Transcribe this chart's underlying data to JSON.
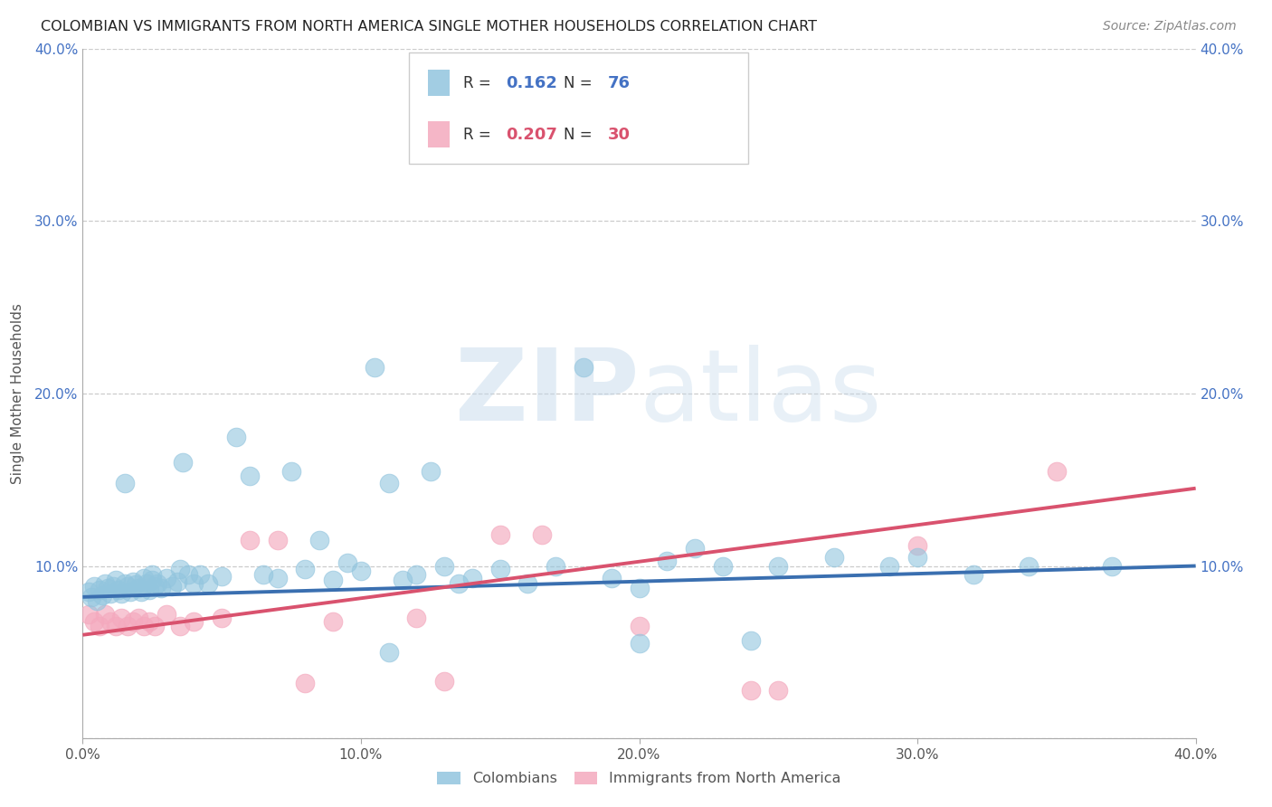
{
  "title": "COLOMBIAN VS IMMIGRANTS FROM NORTH AMERICA SINGLE MOTHER HOUSEHOLDS CORRELATION CHART",
  "source": "Source: ZipAtlas.com",
  "ylabel": "Single Mother Households",
  "xlim": [
    0.0,
    0.4
  ],
  "ylim": [
    0.0,
    0.4
  ],
  "xticks": [
    0.0,
    0.1,
    0.2,
    0.3,
    0.4
  ],
  "yticks": [
    0.0,
    0.1,
    0.2,
    0.3,
    0.4
  ],
  "xticklabels": [
    "0.0%",
    "10.0%",
    "20.0%",
    "30.0%",
    "40.0%"
  ],
  "yticklabels_left": [
    "",
    "10.0%",
    "20.0%",
    "30.0%",
    "40.0%"
  ],
  "yticklabels_right": [
    "",
    "10.0%",
    "20.0%",
    "30.0%",
    "40.0%"
  ],
  "colombians_R": 0.162,
  "colombians_N": 76,
  "immigrants_R": 0.207,
  "immigrants_N": 30,
  "blue_color": "#92c5de",
  "pink_color": "#f4a9be",
  "blue_line_color": "#3a6fb0",
  "pink_line_color": "#d9526e",
  "blue_text_color": "#4472c4",
  "pink_text_color": "#d9526e",
  "legend_label_blue": "Colombians",
  "legend_label_pink": "Immigrants from North America",
  "watermark": "ZIPatlas",
  "blue_line_x0": 0.0,
  "blue_line_x1": 0.4,
  "blue_line_y0": 0.082,
  "blue_line_y1": 0.1,
  "pink_line_x0": 0.0,
  "pink_line_x1": 0.4,
  "pink_line_y0": 0.06,
  "pink_line_y1": 0.145,
  "colombians_x": [
    0.002,
    0.003,
    0.004,
    0.005,
    0.006,
    0.007,
    0.008,
    0.009,
    0.01,
    0.011,
    0.012,
    0.013,
    0.014,
    0.015,
    0.016,
    0.017,
    0.018,
    0.019,
    0.02,
    0.021,
    0.022,
    0.023,
    0.024,
    0.025,
    0.026,
    0.027,
    0.028,
    0.03,
    0.032,
    0.034,
    0.036,
    0.038,
    0.04,
    0.042,
    0.045,
    0.05,
    0.055,
    0.06,
    0.065,
    0.07,
    0.075,
    0.08,
    0.085,
    0.09,
    0.095,
    0.1,
    0.105,
    0.11,
    0.115,
    0.12,
    0.125,
    0.13,
    0.135,
    0.14,
    0.15,
    0.16,
    0.17,
    0.18,
    0.19,
    0.2,
    0.21,
    0.22,
    0.23,
    0.25,
    0.27,
    0.29,
    0.3,
    0.32,
    0.34,
    0.37,
    0.015,
    0.025,
    0.035,
    0.11,
    0.2,
    0.24
  ],
  "colombians_y": [
    0.085,
    0.082,
    0.088,
    0.08,
    0.086,
    0.083,
    0.09,
    0.087,
    0.084,
    0.088,
    0.092,
    0.086,
    0.084,
    0.09,
    0.088,
    0.085,
    0.091,
    0.089,
    0.087,
    0.085,
    0.093,
    0.09,
    0.086,
    0.092,
    0.088,
    0.09,
    0.087,
    0.093,
    0.088,
    0.091,
    0.16,
    0.095,
    0.09,
    0.095,
    0.09,
    0.094,
    0.175,
    0.152,
    0.095,
    0.093,
    0.155,
    0.098,
    0.115,
    0.092,
    0.102,
    0.097,
    0.215,
    0.148,
    0.092,
    0.095,
    0.155,
    0.1,
    0.09,
    0.093,
    0.098,
    0.09,
    0.1,
    0.215,
    0.093,
    0.087,
    0.103,
    0.11,
    0.1,
    0.1,
    0.105,
    0.1,
    0.105,
    0.095,
    0.1,
    0.1,
    0.148,
    0.095,
    0.098,
    0.05,
    0.055,
    0.057
  ],
  "immigrants_x": [
    0.002,
    0.004,
    0.006,
    0.008,
    0.01,
    0.012,
    0.014,
    0.016,
    0.018,
    0.02,
    0.022,
    0.024,
    0.026,
    0.03,
    0.035,
    0.04,
    0.05,
    0.06,
    0.07,
    0.08,
    0.09,
    0.12,
    0.13,
    0.15,
    0.165,
    0.2,
    0.25,
    0.3,
    0.35,
    0.24
  ],
  "immigrants_y": [
    0.072,
    0.068,
    0.065,
    0.072,
    0.068,
    0.065,
    0.07,
    0.065,
    0.068,
    0.07,
    0.065,
    0.068,
    0.065,
    0.072,
    0.065,
    0.068,
    0.07,
    0.115,
    0.115,
    0.032,
    0.068,
    0.07,
    0.033,
    0.118,
    0.118,
    0.065,
    0.028,
    0.112,
    0.155,
    0.028
  ]
}
